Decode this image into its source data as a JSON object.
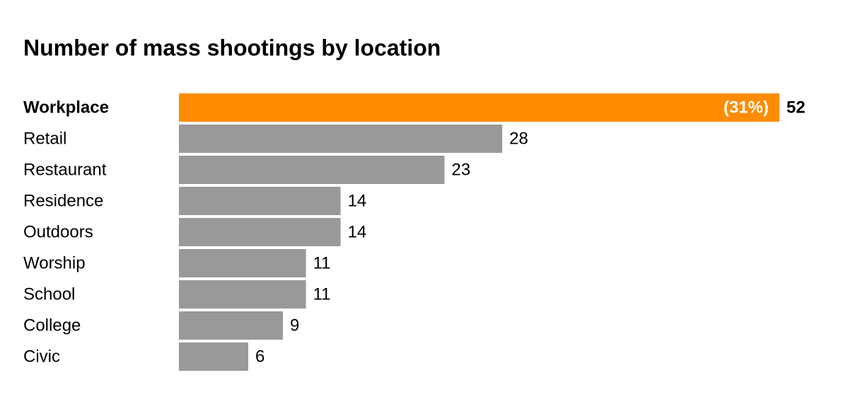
{
  "chart_data": {
    "type": "bar",
    "orientation": "horizontal",
    "title": "Number of mass shootings by location",
    "categories": [
      "Workplace",
      "Retail",
      "Restaurant",
      "Residence",
      "Outdoors",
      "Worship",
      "School",
      "College",
      "Civic"
    ],
    "values": [
      52,
      28,
      23,
      14,
      14,
      11,
      11,
      9,
      6
    ],
    "color": "#999999",
    "highlight": "Workplace",
    "highlight_color": "#ff8c00",
    "annotation": "(31%)"
  }
}
